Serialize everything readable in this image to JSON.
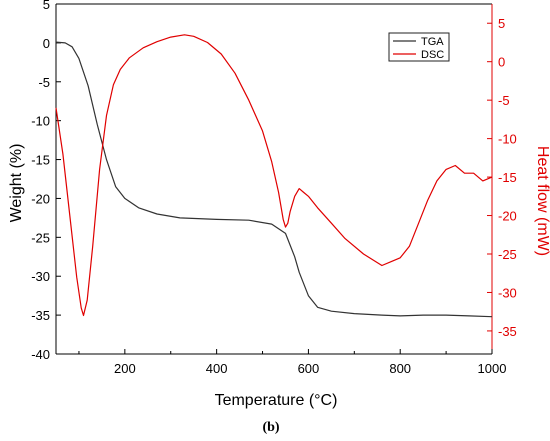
{
  "chart_data": {
    "type": "line",
    "caption": "(b)",
    "xlabel": "Temperature (°C)",
    "ylabel_left": "Weight (%)",
    "ylabel_right": "Heat flow (mW)",
    "xlim": [
      50,
      1000
    ],
    "ylim_left": [
      -40,
      5
    ],
    "ylim_right": [
      -38,
      7.5
    ],
    "x_ticks": [
      200,
      400,
      600,
      800,
      1000
    ],
    "y_ticks_left": [
      5,
      0,
      -5,
      -10,
      -15,
      -20,
      -25,
      -30,
      -35,
      -40
    ],
    "y_ticks_right": [
      5,
      0,
      -5,
      -10,
      -15,
      -20,
      -25,
      -30,
      -35
    ],
    "legend_position": "top-right",
    "colors": {
      "axis_left": "#000000",
      "axis_right": "#e00000",
      "TGA": "#333333",
      "DSC": "#e00000"
    },
    "series": [
      {
        "name": "TGA",
        "axis": "left",
        "x": [
          50,
          70,
          85,
          100,
          120,
          140,
          160,
          180,
          200,
          230,
          270,
          320,
          400,
          470,
          520,
          550,
          570,
          580,
          600,
          620,
          650,
          700,
          760,
          800,
          850,
          900,
          950,
          1000
        ],
        "y": [
          0.1,
          0,
          -0.5,
          -2,
          -5.5,
          -10.5,
          -15,
          -18.5,
          -20,
          -21.2,
          -22,
          -22.5,
          -22.7,
          -22.8,
          -23.3,
          -24.5,
          -27.5,
          -29.5,
          -32.5,
          -34,
          -34.5,
          -34.8,
          -35,
          -35.1,
          -35,
          -35,
          -35.1,
          -35.2
        ]
      },
      {
        "name": "DSC",
        "axis": "right",
        "x": [
          50,
          65,
          80,
          95,
          105,
          110,
          118,
          130,
          145,
          160,
          175,
          190,
          210,
          240,
          270,
          300,
          330,
          350,
          380,
          410,
          440,
          470,
          500,
          520,
          535,
          545,
          550,
          555,
          560,
          570,
          580,
          590,
          600,
          620,
          650,
          680,
          720,
          760,
          780,
          800,
          820,
          840,
          860,
          880,
          900,
          920,
          940,
          960,
          980,
          1000
        ],
        "y": [
          -6,
          -12,
          -20,
          -28,
          -32,
          -33,
          -31,
          -24,
          -14,
          -7,
          -3,
          -1,
          0.5,
          1.8,
          2.6,
          3.2,
          3.5,
          3.3,
          2.5,
          1,
          -1.5,
          -5,
          -9,
          -13,
          -17,
          -20.5,
          -21.5,
          -21,
          -19.5,
          -17.5,
          -16.5,
          -17,
          -17.5,
          -19,
          -21,
          -23,
          -25,
          -26.5,
          -26,
          -25.5,
          -24,
          -21,
          -18,
          -15.5,
          -14,
          -13.5,
          -14.5,
          -14.5,
          -15.5,
          -15
        ]
      }
    ]
  }
}
